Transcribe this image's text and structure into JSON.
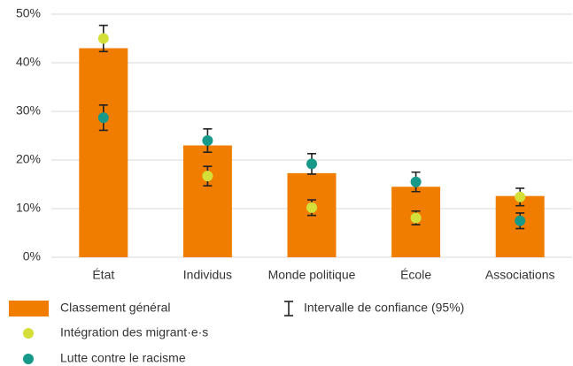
{
  "chart_data": {
    "type": "bar",
    "categories": [
      "État",
      "Individus",
      "Monde politique",
      "École",
      "Associations"
    ],
    "bars": {
      "name": "Classement général",
      "color": "#f07d00",
      "values": [
        43,
        23,
        17.3,
        14.5,
        12.6
      ]
    },
    "series": [
      {
        "name": "Intégration des migrant·e·s",
        "color": "#d5df3a",
        "values": [
          45,
          16.7,
          10.2,
          8.1,
          12.4
        ],
        "errors": [
          2.7,
          2,
          1.6,
          1.4,
          1.8
        ]
      },
      {
        "name": "Lutte contre le racisme",
        "color": "#17998a",
        "values": [
          28.7,
          24,
          19.2,
          15.5,
          7.5
        ],
        "errors": [
          2.6,
          2.4,
          2.1,
          2,
          1.6
        ]
      }
    ],
    "ci_label": "Intervalle de confiance (95%)",
    "ylim": [
      0,
      50
    ],
    "yticks": [
      {
        "value": 0,
        "label": "0%"
      },
      {
        "value": 10,
        "label": "10%"
      },
      {
        "value": 20,
        "label": "20%"
      },
      {
        "value": 30,
        "label": "30%"
      },
      {
        "value": 40,
        "label": "40%"
      },
      {
        "value": 50,
        "label": "50%"
      }
    ],
    "grid": true
  }
}
